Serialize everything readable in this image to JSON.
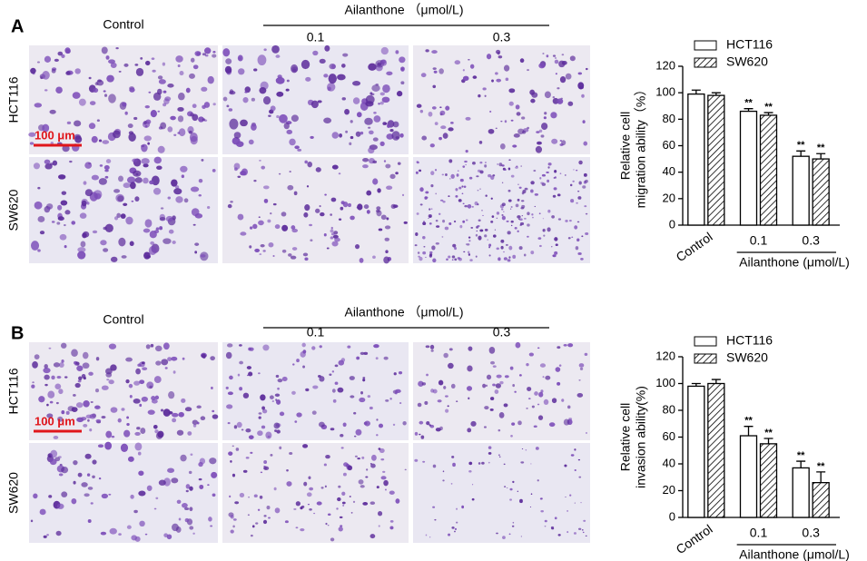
{
  "panels": [
    {
      "label": "A",
      "treatment": "Ailanthone （μmol/L)",
      "columns": [
        "Control",
        "0.1",
        "0.3"
      ],
      "rows": [
        "HCT116",
        "SW620"
      ],
      "scale_bar": "100 μm"
    },
    {
      "label": "B",
      "treatment": "Ailanthone （μmol/L)",
      "columns": [
        "Control",
        "0.1",
        "0.3"
      ],
      "rows": [
        "HCT116",
        "SW620"
      ],
      "scale_bar": "100 μm"
    }
  ],
  "chart_data": [
    {
      "type": "bar",
      "ylabel": [
        "Relative cell",
        "migration ability（%）"
      ],
      "xlabel": "Ailanthone  (μmol/L)",
      "categories": [
        "Control",
        "0.1",
        "0.3"
      ],
      "ylim": [
        0,
        120
      ],
      "yticks": [
        0,
        20,
        40,
        60,
        80,
        100,
        120
      ],
      "series": [
        {
          "name": "HCT116",
          "color": "#ffffff",
          "hatch": false,
          "values": [
            99,
            86,
            52
          ],
          "errors": [
            3,
            2,
            4
          ],
          "significance": [
            null,
            "**",
            "**"
          ]
        },
        {
          "name": "SW620",
          "color": "#ffffff",
          "hatch": true,
          "values": [
            98,
            83,
            50
          ],
          "errors": [
            2,
            2,
            4
          ],
          "significance": [
            null,
            "**",
            "**"
          ]
        }
      ]
    },
    {
      "type": "bar",
      "ylabel": [
        "Relative cell",
        "invasion ability(%)"
      ],
      "xlabel": "Ailanthone  (μmol/L)",
      "categories": [
        "Control",
        "0.1",
        "0.3"
      ],
      "ylim": [
        0,
        120
      ],
      "yticks": [
        0,
        20,
        40,
        60,
        80,
        100,
        120
      ],
      "series": [
        {
          "name": "HCT116",
          "color": "#ffffff",
          "hatch": false,
          "values": [
            98,
            61,
            37
          ],
          "errors": [
            2,
            7,
            5
          ],
          "significance": [
            null,
            "**",
            "**"
          ]
        },
        {
          "name": "SW620",
          "color": "#ffffff",
          "hatch": true,
          "values": [
            100,
            55,
            26
          ],
          "errors": [
            3,
            4,
            8
          ],
          "significance": [
            null,
            "**",
            "**"
          ]
        }
      ]
    }
  ]
}
